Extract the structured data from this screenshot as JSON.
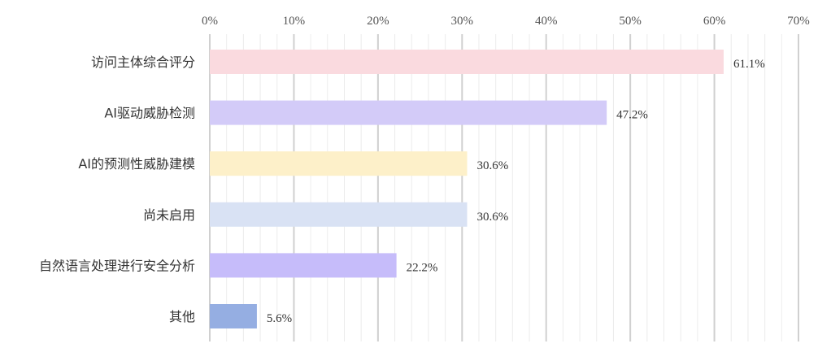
{
  "chart_data": {
    "type": "bar",
    "orientation": "horizontal",
    "title": "",
    "xlabel": "",
    "ylabel": "",
    "xlim": [
      0,
      70
    ],
    "x_ticks": [
      0,
      10,
      20,
      30,
      40,
      50,
      60,
      70
    ],
    "tick_suffix": "%",
    "axis_position": "top",
    "grid": true,
    "categories": [
      "访问主体综合评分",
      "AI驱动威胁检测",
      "AI的预测性威胁建模",
      "尚未启用",
      "自然语言处理进行安全分析",
      "其他"
    ],
    "values": [
      61.1,
      47.2,
      30.6,
      30.6,
      22.2,
      5.6
    ],
    "value_labels": [
      "61.1%",
      "47.2%",
      "30.6%",
      "30.6%",
      "22.2%",
      "5.6%"
    ],
    "colors": [
      "#fadadf",
      "#d3cbf8",
      "#fdf0c9",
      "#d9e2f4",
      "#c6bcfa",
      "#95aee2"
    ]
  }
}
